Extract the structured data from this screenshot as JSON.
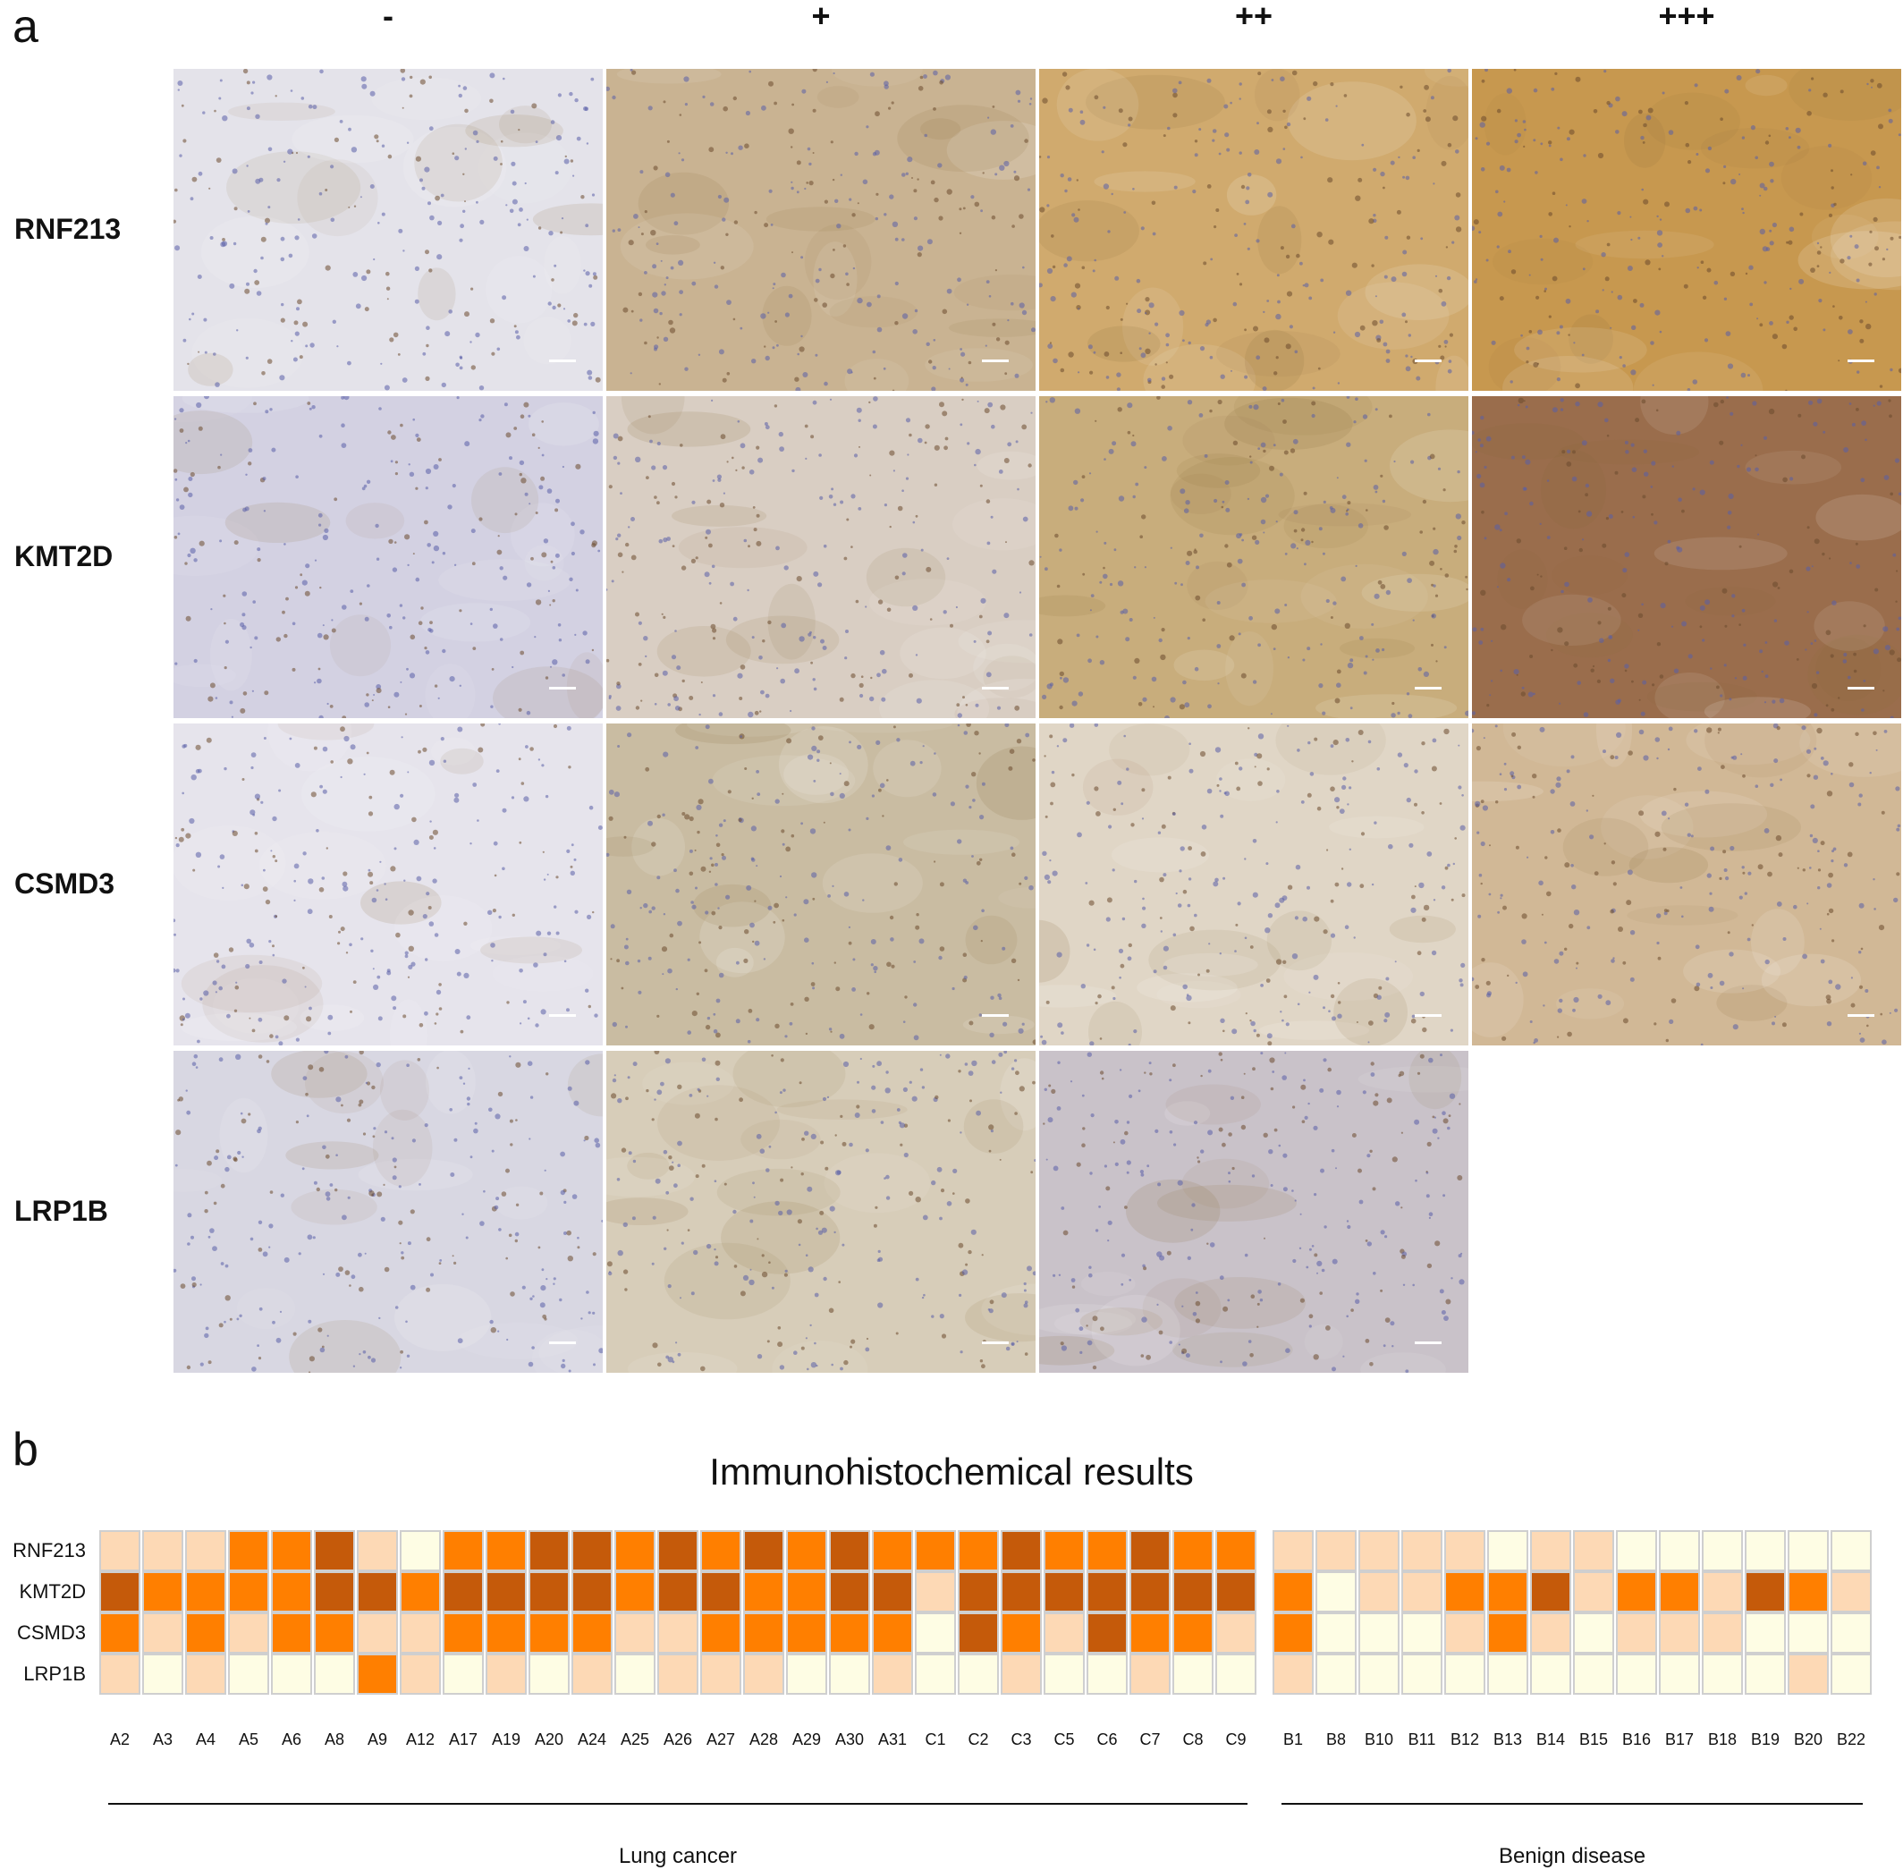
{
  "panel_a": {
    "letter": "a",
    "columns": [
      "-",
      "+",
      "++",
      "+++"
    ],
    "rows": [
      "RNF213",
      "KMT2D",
      "CSMD3",
      "LRP1B"
    ],
    "tile_tints": [
      [
        "#e4e3ea",
        "#c9b392",
        "#d0aa6e",
        "#c7984f"
      ],
      [
        "#d3d1e2",
        "#d9cec3",
        "#c8ad7c",
        "#9a6d4c"
      ],
      [
        "#e6e4ec",
        "#c9bca2",
        "#e0d6c6",
        "#d1b896"
      ],
      [
        "#d8d7e2",
        "#d7cdb9",
        "#c9c2c9",
        null
      ]
    ]
  },
  "panel_b": {
    "letter": "b",
    "title": "Immunohistochemical results",
    "rows": [
      "RNF213",
      "KMT2D",
      "CSMD3",
      "LRP1B"
    ],
    "level_colors": [
      "#fefde4",
      "#fdd9b5",
      "#ff7f00",
      "#c55a0a"
    ],
    "groups": [
      {
        "label": "Lung cancer",
        "samples": [
          "A2",
          "A3",
          "A4",
          "A5",
          "A6",
          "A8",
          "A9",
          "A12",
          "A17",
          "A19",
          "A20",
          "A24",
          "A25",
          "A26",
          "A27",
          "A28",
          "A29",
          "A30",
          "A31",
          "C1",
          "C2",
          "C3",
          "C5",
          "C6",
          "C7",
          "C8",
          "C9"
        ],
        "levels": [
          [
            1,
            1,
            1,
            2,
            2,
            3,
            1,
            0,
            2,
            2,
            3,
            3,
            2,
            3,
            2,
            3,
            2,
            3,
            2,
            2,
            2,
            3,
            2,
            2,
            3,
            2,
            2
          ],
          [
            3,
            2,
            2,
            2,
            2,
            3,
            3,
            2,
            3,
            3,
            3,
            3,
            2,
            3,
            3,
            2,
            2,
            3,
            3,
            1,
            3,
            3,
            3,
            3,
            3,
            3,
            3
          ],
          [
            2,
            1,
            2,
            1,
            2,
            2,
            1,
            1,
            2,
            2,
            2,
            2,
            1,
            1,
            2,
            2,
            2,
            2,
            2,
            0,
            3,
            2,
            1,
            3,
            2,
            2,
            1
          ],
          [
            1,
            0,
            1,
            0,
            0,
            0,
            2,
            1,
            0,
            1,
            0,
            1,
            0,
            1,
            1,
            1,
            0,
            0,
            1,
            0,
            0,
            1,
            0,
            0,
            1,
            0,
            0
          ]
        ]
      },
      {
        "label": "Benign disease",
        "samples": [
          "B1",
          "B8",
          "B10",
          "B11",
          "B12",
          "B13",
          "B14",
          "B15",
          "B16",
          "B17",
          "B18",
          "B19",
          "B20",
          "B22"
        ],
        "levels": [
          [
            1,
            1,
            1,
            1,
            1,
            0,
            1,
            1,
            0,
            0,
            0,
            0,
            0,
            0
          ],
          [
            2,
            0,
            1,
            1,
            2,
            2,
            3,
            1,
            2,
            2,
            1,
            3,
            2,
            1
          ],
          [
            2,
            0,
            0,
            0,
            1,
            2,
            1,
            0,
            1,
            1,
            1,
            0,
            0,
            0
          ],
          [
            1,
            0,
            0,
            0,
            0,
            0,
            0,
            0,
            0,
            0,
            0,
            0,
            1,
            0
          ]
        ]
      }
    ]
  }
}
